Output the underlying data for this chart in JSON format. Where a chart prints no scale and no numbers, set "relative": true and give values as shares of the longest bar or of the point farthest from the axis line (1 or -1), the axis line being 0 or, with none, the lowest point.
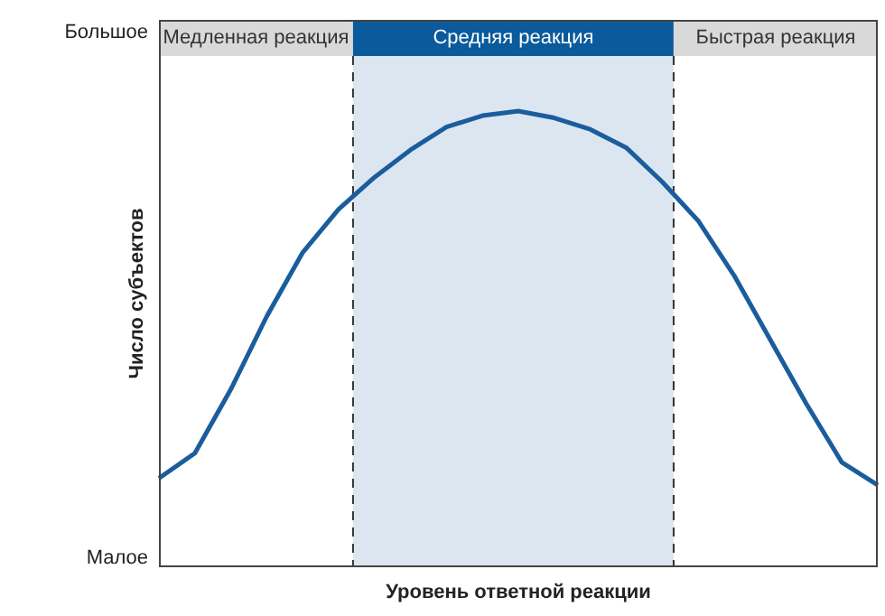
{
  "chart_data": {
    "type": "line",
    "relative": true,
    "xlabel": "Уровень ответной реакции",
    "ylabel": "Число субъектов",
    "annotations": [
      "Большое",
      "Малое",
      "Медленная реакция",
      "Средняя реакция",
      "Быстрая реакция"
    ],
    "categories": [
      null,
      null,
      null,
      null,
      null,
      null,
      null,
      null,
      null,
      null,
      null,
      null,
      null,
      null,
      null,
      null,
      null,
      null,
      null,
      null,
      null
    ],
    "legend": false,
    "marker": "none",
    "line_style": "solid",
    "series": [
      {
        "color": "#1b5d9c",
        "values": [
          0.195,
          0.25,
          0.39,
          0.55,
          0.69,
          0.785,
          0.855,
          0.915,
          0.965,
          0.99,
          1,
          0.985,
          0.96,
          0.92,
          0.845,
          0.76,
          0.64,
          0.5,
          0.36,
          0.23,
          0.18
        ]
      }
    ]
  }
}
